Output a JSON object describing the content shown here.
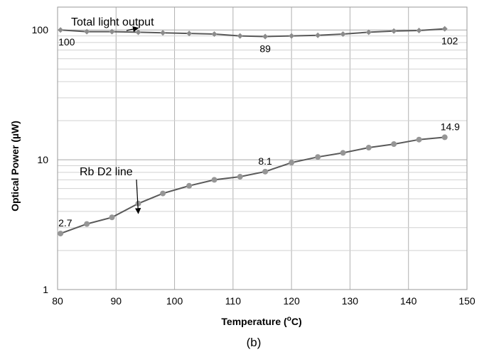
{
  "chart_data": {
    "type": "line",
    "caption": "(b)",
    "xlabel_main": "Temperature (",
    "xlabel_sup": "o",
    "xlabel_end": "C)",
    "ylabel": "Optical Power (µW)",
    "xlim": [
      80,
      150
    ],
    "ylim": [
      1,
      150
    ],
    "yscale": "log",
    "grid": true,
    "x_ticks": [
      "80",
      "90",
      "100",
      "110",
      "120",
      "130",
      "140",
      "150"
    ],
    "y_ticks": [
      "1",
      "10",
      "100"
    ],
    "series": [
      {
        "name": "Total light output",
        "marker": "diamond",
        "color": "#595959",
        "marker_color": "#8c8c8c",
        "x": [
          80.5,
          85,
          89.3,
          93.8,
          98,
          102.5,
          106.8,
          111.2,
          115.5,
          120,
          124.5,
          128.8,
          133.2,
          137.5,
          141.8,
          146.2
        ],
        "y": [
          100,
          97,
          97,
          96,
          95,
          94,
          93,
          90,
          89,
          90,
          91,
          93,
          96,
          98,
          99,
          102
        ]
      },
      {
        "name": "Rb D2 line",
        "marker": "circle",
        "color": "#595959",
        "marker_color": "#969696",
        "x": [
          80.5,
          85,
          89.3,
          93.8,
          98,
          102.5,
          106.8,
          111.2,
          115.5,
          120,
          124.5,
          128.8,
          133.2,
          137.5,
          141.8,
          146.2
        ],
        "y": [
          2.7,
          3.2,
          3.6,
          4.6,
          5.5,
          6.3,
          7.0,
          7.4,
          8.1,
          9.5,
          10.5,
          11.3,
          12.4,
          13.2,
          14.3,
          14.9
        ]
      }
    ],
    "data_labels": [
      {
        "series": 0,
        "index": 0,
        "text": "100",
        "position": "below"
      },
      {
        "series": 0,
        "index": 8,
        "text": "89",
        "position": "below"
      },
      {
        "series": 0,
        "index": 15,
        "text": "102",
        "position": "below"
      },
      {
        "series": 1,
        "index": 0,
        "text": "2.7",
        "position": "above"
      },
      {
        "series": 1,
        "index": 8,
        "text": "8.1",
        "position": "above"
      },
      {
        "series": 1,
        "index": 15,
        "text": "14.9",
        "position": "above"
      }
    ],
    "annotations": [
      {
        "text": "Total light output",
        "target_series": 0
      },
      {
        "text": "Rb D2 line",
        "target_series": 1
      }
    ]
  }
}
